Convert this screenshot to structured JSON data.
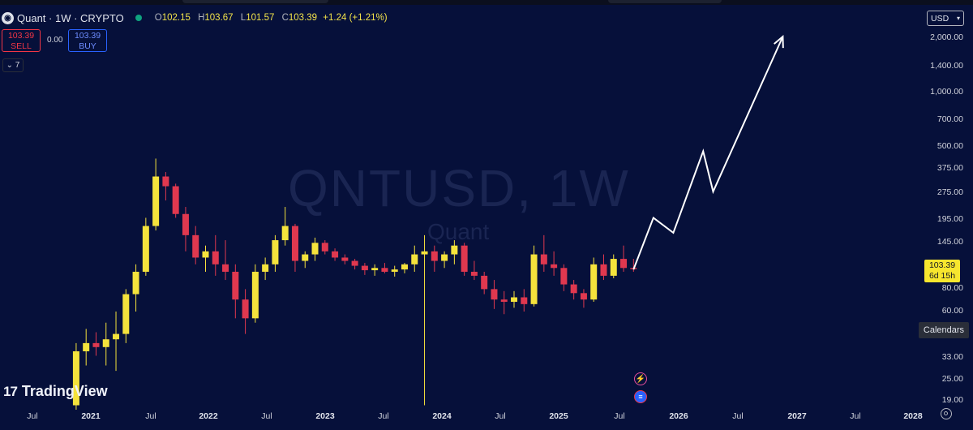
{
  "header": {
    "icon": "quant-logo-icon",
    "title": "Quant · 1W · CRYPTO",
    "open_label": "O",
    "open": "102.15",
    "high_label": "H",
    "high": "103.67",
    "low_label": "L",
    "low": "101.57",
    "close_label": "C",
    "close": "103.39",
    "change": "+1.24 (+1.21%)"
  },
  "trade": {
    "sell_price": "103.39",
    "sell_label": "SELL",
    "spread": "0.00",
    "buy_price": "103.39",
    "buy_label": "BUY"
  },
  "indicators_toggle": "7",
  "currency": "USD",
  "yaxis": [
    "2,000.00",
    "1,400.00",
    "1,000.00",
    "700.00",
    "500.00",
    "375.00",
    "275.00",
    "195.00",
    "145.00",
    "80.00",
    "60.00",
    "33.00",
    "25.00",
    "19.00"
  ],
  "price_badge": {
    "price": "103.39",
    "countdown": "6d 15h"
  },
  "calendars_label": "Calendars",
  "xaxis": [
    {
      "label": "Jul",
      "bold": false
    },
    {
      "label": "2021",
      "bold": true
    },
    {
      "label": "Jul",
      "bold": false
    },
    {
      "label": "2022",
      "bold": true
    },
    {
      "label": "Jul",
      "bold": false
    },
    {
      "label": "2023",
      "bold": true
    },
    {
      "label": "Jul",
      "bold": false
    },
    {
      "label": "2024",
      "bold": true
    },
    {
      "label": "Jul",
      "bold": false
    },
    {
      "label": "2025",
      "bold": true
    },
    {
      "label": "Jul",
      "bold": false
    },
    {
      "label": "2026",
      "bold": true
    },
    {
      "label": "Jul",
      "bold": false
    },
    {
      "label": "2027",
      "bold": true
    },
    {
      "label": "Jul",
      "bold": false
    },
    {
      "label": "2028",
      "bold": true
    }
  ],
  "watermark": {
    "symbol": "QNTUSD, 1W",
    "name": "Quant"
  },
  "branding": "TradingView",
  "colors": {
    "background": "#06103a",
    "up": "#f5e33c",
    "down": "#e0384f",
    "projection": "#ffffff",
    "badge": "#f7e62e"
  },
  "chart_data": {
    "type": "candlestick",
    "scale": "log",
    "x_range": [
      "2020-06",
      "2028-01"
    ],
    "y_range": [
      17,
      2400
    ],
    "candles": [
      {
        "t": "2021-01",
        "o": 18,
        "h": 40,
        "l": 17,
        "c": 36
      },
      {
        "t": "2021-02",
        "o": 36,
        "h": 48,
        "l": 30,
        "c": 40
      },
      {
        "t": "2021-03",
        "o": 40,
        "h": 46,
        "l": 34,
        "c": 38
      },
      {
        "t": "2021-04",
        "o": 38,
        "h": 52,
        "l": 30,
        "c": 42
      },
      {
        "t": "2021-05",
        "o": 42,
        "h": 60,
        "l": 28,
        "c": 45
      },
      {
        "t": "2021-06",
        "o": 45,
        "h": 80,
        "l": 40,
        "c": 75
      },
      {
        "t": "2021-07",
        "o": 75,
        "h": 110,
        "l": 60,
        "c": 100
      },
      {
        "t": "2021-08",
        "o": 100,
        "h": 200,
        "l": 95,
        "c": 180
      },
      {
        "t": "2021-09",
        "o": 180,
        "h": 428,
        "l": 170,
        "c": 340
      },
      {
        "t": "2021-10",
        "o": 340,
        "h": 360,
        "l": 250,
        "c": 300
      },
      {
        "t": "2021-11",
        "o": 300,
        "h": 310,
        "l": 200,
        "c": 210
      },
      {
        "t": "2021-12",
        "o": 210,
        "h": 230,
        "l": 130,
        "c": 160
      },
      {
        "t": "2022-01",
        "o": 160,
        "h": 180,
        "l": 110,
        "c": 120
      },
      {
        "t": "2022-02",
        "o": 120,
        "h": 140,
        "l": 100,
        "c": 130
      },
      {
        "t": "2022-03",
        "o": 130,
        "h": 160,
        "l": 95,
        "c": 110
      },
      {
        "t": "2022-04",
        "o": 110,
        "h": 150,
        "l": 90,
        "c": 100
      },
      {
        "t": "2022-05",
        "o": 100,
        "h": 110,
        "l": 55,
        "c": 70
      },
      {
        "t": "2022-06",
        "o": 70,
        "h": 80,
        "l": 45,
        "c": 55
      },
      {
        "t": "2022-07",
        "o": 55,
        "h": 110,
        "l": 52,
        "c": 100
      },
      {
        "t": "2022-08",
        "o": 100,
        "h": 120,
        "l": 90,
        "c": 110
      },
      {
        "t": "2022-09",
        "o": 110,
        "h": 160,
        "l": 100,
        "c": 150
      },
      {
        "t": "2022-10",
        "o": 150,
        "h": 230,
        "l": 140,
        "c": 180
      },
      {
        "t": "2022-11",
        "o": 180,
        "h": 185,
        "l": 100,
        "c": 115
      },
      {
        "t": "2022-12",
        "o": 115,
        "h": 130,
        "l": 105,
        "c": 125
      },
      {
        "t": "2023-01",
        "o": 125,
        "h": 155,
        "l": 115,
        "c": 145
      },
      {
        "t": "2023-02",
        "o": 145,
        "h": 150,
        "l": 125,
        "c": 130
      },
      {
        "t": "2023-03",
        "o": 130,
        "h": 135,
        "l": 115,
        "c": 120
      },
      {
        "t": "2023-04",
        "o": 120,
        "h": 125,
        "l": 110,
        "c": 115
      },
      {
        "t": "2023-05",
        "o": 115,
        "h": 118,
        "l": 103,
        "c": 108
      },
      {
        "t": "2023-06",
        "o": 108,
        "h": 112,
        "l": 96,
        "c": 102
      },
      {
        "t": "2023-07",
        "o": 102,
        "h": 110,
        "l": 95,
        "c": 105
      },
      {
        "t": "2023-08",
        "o": 105,
        "h": 112,
        "l": 98,
        "c": 100
      },
      {
        "t": "2023-09",
        "o": 100,
        "h": 108,
        "l": 94,
        "c": 103
      },
      {
        "t": "2023-10",
        "o": 103,
        "h": 112,
        "l": 98,
        "c": 110
      },
      {
        "t": "2023-11",
        "o": 110,
        "h": 140,
        "l": 100,
        "c": 125
      },
      {
        "t": "2023-12",
        "o": 125,
        "h": 160,
        "l": 18,
        "c": 130
      },
      {
        "t": "2024-01",
        "o": 130,
        "h": 140,
        "l": 100,
        "c": 115
      },
      {
        "t": "2024-02",
        "o": 115,
        "h": 130,
        "l": 105,
        "c": 125
      },
      {
        "t": "2024-03",
        "o": 125,
        "h": 150,
        "l": 110,
        "c": 140
      },
      {
        "t": "2024-04",
        "o": 140,
        "h": 145,
        "l": 95,
        "c": 100
      },
      {
        "t": "2024-05",
        "o": 100,
        "h": 115,
        "l": 90,
        "c": 95
      },
      {
        "t": "2024-06",
        "o": 95,
        "h": 100,
        "l": 75,
        "c": 80
      },
      {
        "t": "2024-07",
        "o": 80,
        "h": 90,
        "l": 62,
        "c": 70
      },
      {
        "t": "2024-08",
        "o": 70,
        "h": 78,
        "l": 58,
        "c": 68
      },
      {
        "t": "2024-09",
        "o": 68,
        "h": 78,
        "l": 63,
        "c": 72
      },
      {
        "t": "2024-10",
        "o": 72,
        "h": 80,
        "l": 60,
        "c": 66
      },
      {
        "t": "2024-11",
        "o": 66,
        "h": 140,
        "l": 64,
        "c": 125
      },
      {
        "t": "2024-12",
        "o": 125,
        "h": 160,
        "l": 100,
        "c": 110
      },
      {
        "t": "2025-01",
        "o": 110,
        "h": 130,
        "l": 95,
        "c": 105
      },
      {
        "t": "2025-02",
        "o": 105,
        "h": 110,
        "l": 78,
        "c": 85
      },
      {
        "t": "2025-03",
        "o": 85,
        "h": 90,
        "l": 70,
        "c": 76
      },
      {
        "t": "2025-04",
        "o": 76,
        "h": 80,
        "l": 63,
        "c": 70
      },
      {
        "t": "2025-05",
        "o": 70,
        "h": 120,
        "l": 68,
        "c": 110
      },
      {
        "t": "2025-06",
        "o": 110,
        "h": 125,
        "l": 90,
        "c": 95
      },
      {
        "t": "2025-07",
        "o": 95,
        "h": 125,
        "l": 92,
        "c": 118
      },
      {
        "t": "2025-08",
        "o": 118,
        "h": 140,
        "l": 100,
        "c": 105
      },
      {
        "t": "2025-09",
        "o": 105,
        "h": 118,
        "l": 100,
        "c": 103.39
      }
    ],
    "projection": [
      {
        "t": "2025-09",
        "v": 103
      },
      {
        "t": "2025-11",
        "v": 200
      },
      {
        "t": "2026-01",
        "v": 165
      },
      {
        "t": "2026-04",
        "v": 470
      },
      {
        "t": "2026-05",
        "v": 280
      },
      {
        "t": "2026-12",
        "v": 2050
      }
    ]
  }
}
